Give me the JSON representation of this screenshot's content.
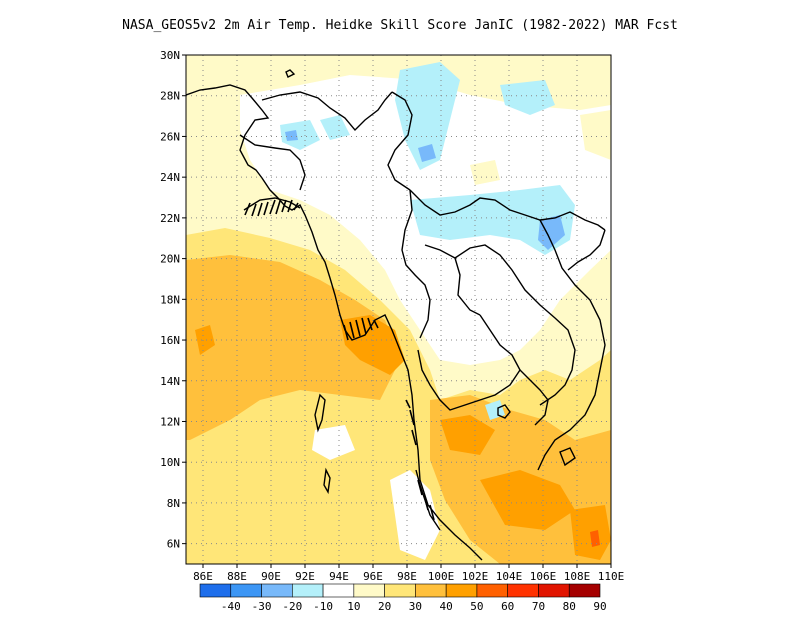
{
  "title": "NASA_GEOS5v2  2m Air Temp. Heidke Skill Score JanIC (1982-2022) MAR Fcst",
  "map": {
    "lon_range": [
      85,
      110
    ],
    "lat_range": [
      5,
      30
    ],
    "lat_ticks": [
      {
        "value": 30,
        "label": "30N"
      },
      {
        "value": 28,
        "label": "28N"
      },
      {
        "value": 26,
        "label": "26N"
      },
      {
        "value": 24,
        "label": "24N"
      },
      {
        "value": 22,
        "label": "22N"
      },
      {
        "value": 20,
        "label": "20N"
      },
      {
        "value": 18,
        "label": "18N"
      },
      {
        "value": 16,
        "label": "16N"
      },
      {
        "value": 14,
        "label": "14N"
      },
      {
        "value": 12,
        "label": "12N"
      },
      {
        "value": 10,
        "label": "10N"
      },
      {
        "value": 8,
        "label": "8N"
      },
      {
        "value": 6,
        "label": "6N"
      }
    ],
    "lon_ticks": [
      {
        "value": 86,
        "label": "86E"
      },
      {
        "value": 88,
        "label": "88E"
      },
      {
        "value": 90,
        "label": "90E"
      },
      {
        "value": 92,
        "label": "92E"
      },
      {
        "value": 94,
        "label": "94E"
      },
      {
        "value": 96,
        "label": "96E"
      },
      {
        "value": 98,
        "label": "98E"
      },
      {
        "value": 100,
        "label": "100E"
      },
      {
        "value": 102,
        "label": "102E"
      },
      {
        "value": 104,
        "label": "104E"
      },
      {
        "value": 106,
        "label": "106E"
      },
      {
        "value": 108,
        "label": "108E"
      },
      {
        "value": 110,
        "label": "110E"
      }
    ]
  },
  "colorbar": {
    "colors": [
      "#1e6eeb",
      "#3c96f5",
      "#78b9fa",
      "#b4f0fa",
      "#ffffff",
      "#fffac8",
      "#ffe678",
      "#ffc03c",
      "#ffa000",
      "#ff6000",
      "#ff3200",
      "#e11400",
      "#a50000"
    ],
    "labels": [
      "-40",
      "-30",
      "-20",
      "-10",
      "10",
      "20",
      "30",
      "40",
      "50",
      "60",
      "70",
      "80",
      "90"
    ]
  },
  "fields": {
    "light_yellow": "#fffac8",
    "yellow": "#ffe678",
    "light_orange": "#ffc03c",
    "orange": "#ffa000",
    "red_orange": "#ff6000",
    "light_blue": "#b4f0fa",
    "mid_blue": "#78b9fa"
  }
}
